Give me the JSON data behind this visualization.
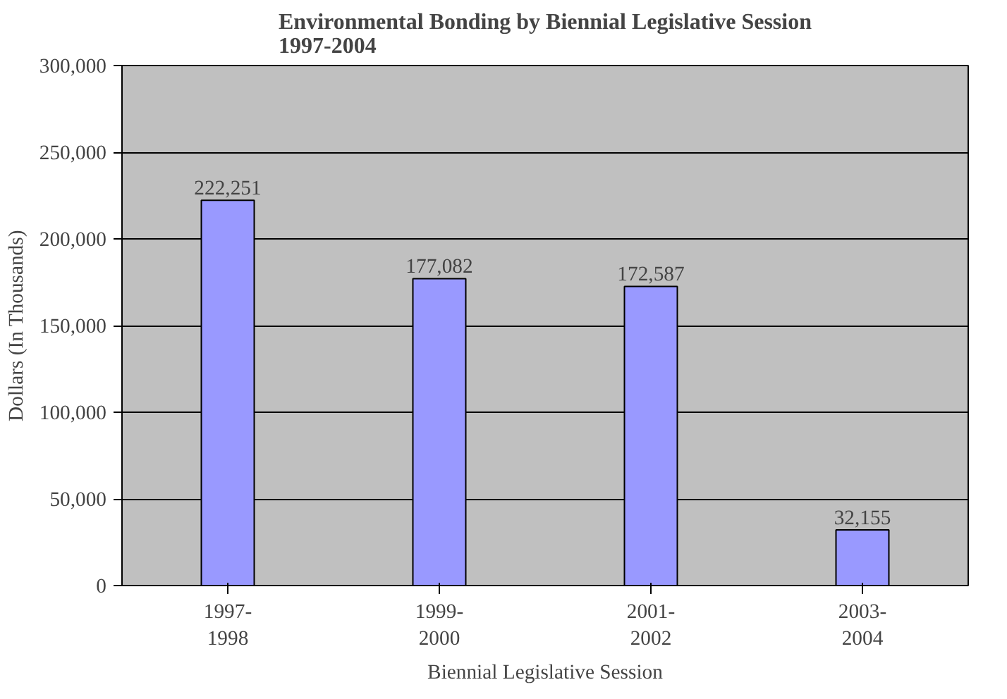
{
  "chart_data": {
    "type": "bar",
    "title": "Environmental Bonding by Biennial Legislative Session\n1997-2004",
    "xlabel": "Biennial Legislative Session",
    "ylabel": "Dollars (In Thousands)",
    "categories": [
      "1997-1998",
      "1999-2000",
      "2001-2002",
      "2003-2004"
    ],
    "values": [
      222251,
      177082,
      172587,
      32155
    ],
    "color": "#9999ff",
    "ylim": [
      0,
      300000
    ],
    "yticks": [
      {
        "value": 0,
        "label": "0"
      },
      {
        "value": 50000,
        "label": "50,000"
      },
      {
        "value": 100000,
        "label": "100,000"
      },
      {
        "value": 150000,
        "label": "150,000"
      },
      {
        "value": 200000,
        "label": "200,000"
      },
      {
        "value": 250000,
        "label": "250,000"
      },
      {
        "value": 300000,
        "label": "300,000"
      }
    ],
    "value_labels": [
      "222,251",
      "177,082",
      "172,587",
      "32,155"
    ],
    "grid": "y"
  }
}
